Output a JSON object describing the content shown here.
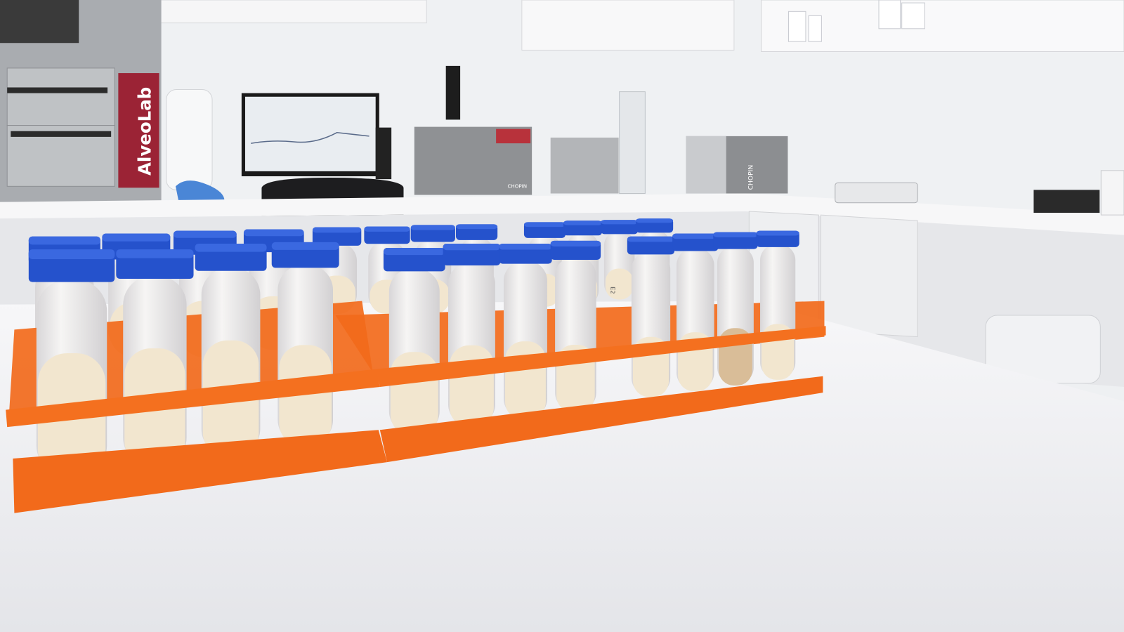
{
  "labels": {
    "oven_brand": "AlveoLab",
    "device_brand_1": "CHOPIN",
    "device_brand_2": "CHOPIN",
    "tube_label": "E2"
  },
  "colors": {
    "rack": "#f26a1b",
    "cap": "#2552cc",
    "tube": "#e9e7e6",
    "liquid": "#f2e6cf",
    "liquid_tan": "#d9bd98",
    "table": "#f3f4f6",
    "wall": "#eff1f3",
    "brand_panel": "#9b2335"
  },
  "tubes": {
    "front_count": 12,
    "back_count": 12
  }
}
